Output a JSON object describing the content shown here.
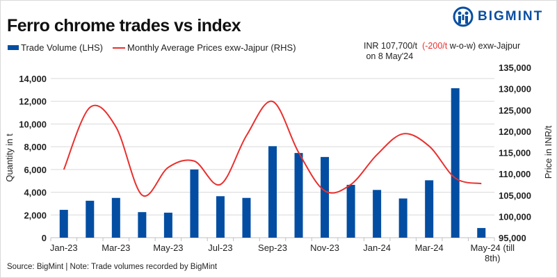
{
  "brand": {
    "name": "BIGMINT",
    "color": "#0a4fa0"
  },
  "title": "Ferro chrome trades vs index",
  "note": {
    "line1_prefix": "INR 107,700/t",
    "change": "(-200/t",
    "line1_suffix": "w-o-w)  exw-Jajpur",
    "line2": "on 8 May'24"
  },
  "source": "Source: BigMint | Note: Trade volumes recorded by BigMint",
  "chart_data": {
    "type": "bar+line",
    "title": "Ferro chrome trades vs index",
    "categories": [
      "Jan-23",
      "Feb-23",
      "Mar-23",
      "Apr-23",
      "May-23",
      "Jun-23",
      "Jul-23",
      "Aug-23",
      "Sep-23",
      "Oct-23",
      "Nov-23",
      "Dec-23",
      "Jan-24",
      "Feb-24",
      "Mar-24",
      "Apr-24",
      "May-24 (till 8th)"
    ],
    "x_tick_labels": [
      "Jan-23",
      "Mar-23",
      "May-23",
      "Jul-23",
      "Sep-23",
      "Nov-23",
      "Jan-24",
      "Mar-24",
      "May-24 (till",
      "8th)"
    ],
    "series": [
      {
        "name": "Trade Volume (LHS)",
        "type": "bar",
        "axis": "left",
        "color": "#034ea2",
        "values": [
          2450,
          3250,
          3500,
          2250,
          2200,
          6000,
          3650,
          3500,
          8050,
          7450,
          7100,
          4650,
          4200,
          3450,
          5050,
          13150,
          850
        ]
      },
      {
        "name": "Monthly Average Prices exw-Jajpur (RHS)",
        "type": "line",
        "axis": "right",
        "color": "#e8302e",
        "values": [
          111000,
          125600,
          121000,
          105000,
          111500,
          113000,
          107500,
          119000,
          127000,
          115000,
          106000,
          107500,
          114500,
          119400,
          116500,
          109000,
          107700
        ]
      }
    ],
    "ylabel": "Quantity in t",
    "ylim": [
      0,
      14000
    ],
    "yticks": [
      "0",
      "2,000",
      "4,000",
      "6,000",
      "8,000",
      "10,000",
      "12,000",
      "14,000"
    ],
    "y2label": "Price in INR/t",
    "y2lim": [
      95000,
      135000
    ],
    "y2ticks": [
      "95,000",
      "100,000",
      "105,000",
      "110,000",
      "115,000",
      "120,000",
      "125,000",
      "130,000",
      "135,000"
    ],
    "grid": true,
    "legend": "top-left"
  }
}
